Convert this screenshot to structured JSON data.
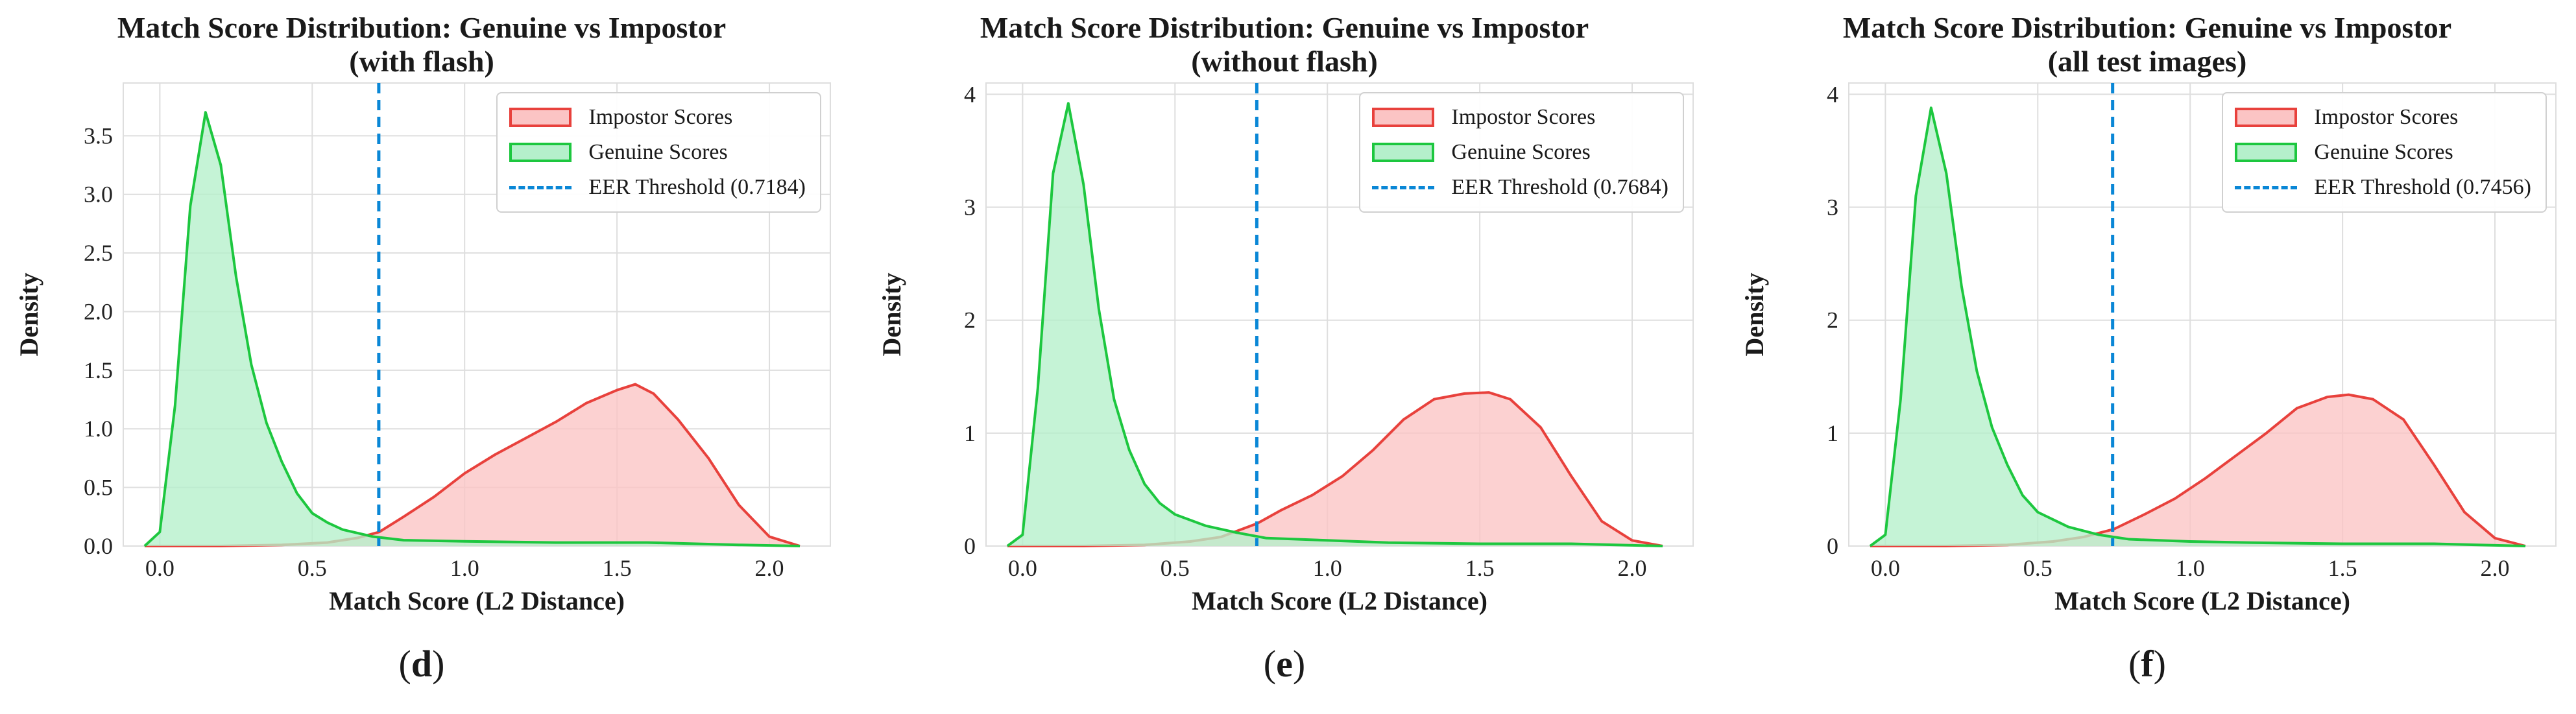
{
  "panels": [
    {
      "id": "d",
      "title_line1": "Match Score Distribution: Genuine vs Impostor",
      "title_line2": "(with flash)",
      "panel_label": "d",
      "legend": {
        "impostor": "Impostor Scores",
        "genuine": "Genuine Scores",
        "threshold": "EER Threshold (0.7184)"
      }
    },
    {
      "id": "e",
      "title_line1": "Match Score Distribution: Genuine vs Impostor",
      "title_line2": "(without flash)",
      "panel_label": "e",
      "legend": {
        "impostor": "Impostor Scores",
        "genuine": "Genuine Scores",
        "threshold": "EER Threshold (0.7684)"
      }
    },
    {
      "id": "f",
      "title_line1": "Match Score Distribution: Genuine vs Impostor",
      "title_line2": "(all test images)",
      "panel_label": "f",
      "legend": {
        "impostor": "Impostor Scores",
        "genuine": "Genuine Scores",
        "threshold": "EER Threshold (0.7456)"
      }
    }
  ],
  "colors": {
    "impostor_line": "#e8413c",
    "impostor_fill": "#fbc4c4",
    "genuine_line": "#1dc73f",
    "genuine_fill": "#b5f0cb",
    "threshold": "#0a87d6",
    "grid": "#dedede"
  },
  "chart_data": [
    {
      "type": "area",
      "title": "Match Score Distribution: Genuine vs Impostor (with flash)",
      "xlabel": "Match Score (L2 Distance)",
      "ylabel": "Density",
      "xlim": [
        -0.12,
        2.2
      ],
      "ylim": [
        0,
        3.95
      ],
      "x_ticks": [
        0.0,
        0.5,
        1.0,
        1.5,
        2.0
      ],
      "x_tick_labels": [
        "0.0",
        "0.5",
        "1.0",
        "1.5",
        "2.0"
      ],
      "y_ticks": [
        0,
        0.5,
        1.0,
        1.5,
        2.0,
        2.5,
        3.0,
        3.5
      ],
      "y_tick_labels": [
        "0.0",
        "0.5",
        "1.0",
        "1.5",
        "2.0",
        "2.5",
        "3.0",
        "3.5"
      ],
      "grid": true,
      "legend_position": "top-right",
      "threshold": 0.7184,
      "series": [
        {
          "name": "Impostor Scores",
          "x": [
            -0.05,
            0.2,
            0.4,
            0.55,
            0.65,
            0.72,
            0.8,
            0.9,
            1.0,
            1.1,
            1.2,
            1.3,
            1.4,
            1.5,
            1.56,
            1.62,
            1.7,
            1.8,
            1.9,
            2.0,
            2.1
          ],
          "y": [
            0,
            0.0,
            0.01,
            0.03,
            0.07,
            0.12,
            0.25,
            0.42,
            0.62,
            0.78,
            0.92,
            1.06,
            1.22,
            1.33,
            1.38,
            1.3,
            1.08,
            0.75,
            0.35,
            0.08,
            0
          ]
        },
        {
          "name": "Genuine Scores",
          "x": [
            -0.05,
            0.0,
            0.05,
            0.1,
            0.15,
            0.2,
            0.25,
            0.3,
            0.35,
            0.4,
            0.45,
            0.5,
            0.55,
            0.6,
            0.7,
            0.8,
            1.0,
            1.3,
            1.6,
            1.9,
            2.1
          ],
          "y": [
            0,
            0.12,
            1.2,
            2.9,
            3.7,
            3.25,
            2.3,
            1.55,
            1.05,
            0.72,
            0.45,
            0.28,
            0.2,
            0.14,
            0.08,
            0.05,
            0.04,
            0.03,
            0.03,
            0.01,
            0
          ]
        }
      ]
    },
    {
      "type": "area",
      "title": "Match Score Distribution: Genuine vs Impostor (without flash)",
      "xlabel": "Match Score (L2 Distance)",
      "ylabel": "Density",
      "xlim": [
        -0.12,
        2.2
      ],
      "ylim": [
        0,
        4.1
      ],
      "x_ticks": [
        0.0,
        0.5,
        1.0,
        1.5,
        2.0
      ],
      "x_tick_labels": [
        "0.0",
        "0.5",
        "1.0",
        "1.5",
        "2.0"
      ],
      "y_ticks": [
        0,
        1,
        2,
        3,
        4
      ],
      "y_tick_labels": [
        "0",
        "1",
        "2",
        "3",
        "4"
      ],
      "grid": true,
      "legend_position": "top-right",
      "threshold": 0.7684,
      "series": [
        {
          "name": "Impostor Scores",
          "x": [
            -0.05,
            0.2,
            0.4,
            0.55,
            0.65,
            0.77,
            0.85,
            0.95,
            1.05,
            1.15,
            1.25,
            1.35,
            1.45,
            1.53,
            1.6,
            1.7,
            1.8,
            1.9,
            2.0,
            2.1
          ],
          "y": [
            0,
            0.0,
            0.01,
            0.04,
            0.08,
            0.2,
            0.32,
            0.45,
            0.62,
            0.85,
            1.12,
            1.3,
            1.35,
            1.36,
            1.3,
            1.05,
            0.62,
            0.22,
            0.05,
            0
          ]
        },
        {
          "name": "Genuine Scores",
          "x": [
            -0.05,
            0.0,
            0.05,
            0.1,
            0.15,
            0.2,
            0.25,
            0.3,
            0.35,
            0.4,
            0.45,
            0.5,
            0.6,
            0.7,
            0.8,
            1.0,
            1.2,
            1.5,
            1.8,
            2.1
          ],
          "y": [
            0,
            0.1,
            1.4,
            3.3,
            3.92,
            3.2,
            2.1,
            1.3,
            0.85,
            0.55,
            0.38,
            0.28,
            0.18,
            0.12,
            0.07,
            0.05,
            0.03,
            0.02,
            0.02,
            0
          ]
        }
      ]
    },
    {
      "type": "area",
      "title": "Match Score Distribution: Genuine vs Impostor (all test images)",
      "xlabel": "Match Score (L2 Distance)",
      "ylabel": "Density",
      "xlim": [
        -0.12,
        2.2
      ],
      "ylim": [
        0,
        4.1
      ],
      "x_ticks": [
        0.0,
        0.5,
        1.0,
        1.5,
        2.0
      ],
      "x_tick_labels": [
        "0.0",
        "0.5",
        "1.0",
        "1.5",
        "2.0"
      ],
      "y_ticks": [
        0,
        1,
        2,
        3,
        4
      ],
      "y_tick_labels": [
        "0",
        "1",
        "2",
        "3",
        "4"
      ],
      "grid": true,
      "legend_position": "top-right",
      "threshold": 0.7456,
      "series": [
        {
          "name": "Impostor Scores",
          "x": [
            -0.05,
            0.2,
            0.4,
            0.55,
            0.65,
            0.75,
            0.85,
            0.95,
            1.05,
            1.15,
            1.25,
            1.35,
            1.45,
            1.52,
            1.6,
            1.7,
            1.8,
            1.9,
            2.0,
            2.1
          ],
          "y": [
            0,
            0.0,
            0.01,
            0.04,
            0.08,
            0.15,
            0.28,
            0.42,
            0.6,
            0.8,
            1.0,
            1.22,
            1.32,
            1.34,
            1.3,
            1.12,
            0.72,
            0.3,
            0.07,
            0
          ]
        },
        {
          "name": "Genuine Scores",
          "x": [
            -0.05,
            0.0,
            0.05,
            0.1,
            0.15,
            0.2,
            0.25,
            0.3,
            0.35,
            0.4,
            0.45,
            0.5,
            0.6,
            0.7,
            0.8,
            1.0,
            1.2,
            1.5,
            1.8,
            2.1
          ],
          "y": [
            0,
            0.1,
            1.3,
            3.1,
            3.88,
            3.3,
            2.3,
            1.55,
            1.05,
            0.72,
            0.45,
            0.3,
            0.17,
            0.1,
            0.06,
            0.04,
            0.03,
            0.02,
            0.02,
            0
          ]
        }
      ]
    }
  ]
}
